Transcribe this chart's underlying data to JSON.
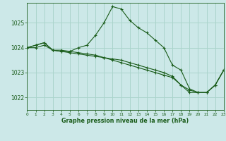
{
  "title": "Graphe pression niveau de la mer (hPa)",
  "background_color": "#cce8e8",
  "grid_color": "#aad4cc",
  "line_color": "#1a5c1a",
  "xlim": [
    0,
    23
  ],
  "ylim": [
    1021.5,
    1025.8
  ],
  "yticks": [
    1022,
    1023,
    1024,
    1025
  ],
  "xticks": [
    0,
    1,
    2,
    3,
    4,
    5,
    6,
    7,
    8,
    9,
    10,
    11,
    12,
    13,
    14,
    15,
    16,
    17,
    18,
    19,
    20,
    21,
    22,
    23
  ],
  "series": [
    [
      1024.0,
      1024.0,
      1024.1,
      1023.9,
      1023.9,
      1023.85,
      1023.8,
      1023.75,
      1023.7,
      1023.6,
      1023.5,
      1023.4,
      1023.3,
      1023.2,
      1023.1,
      1023.0,
      1022.9,
      1022.8,
      1022.5,
      1022.2,
      1022.2,
      1022.2,
      1022.5,
      1023.1
    ],
    [
      1024.0,
      1024.1,
      1024.2,
      1023.9,
      1023.85,
      1023.85,
      1024.0,
      1024.1,
      1024.5,
      1025.0,
      1025.65,
      1025.55,
      1025.1,
      1024.8,
      1024.6,
      1024.3,
      1024.0,
      1023.3,
      1023.1,
      1022.35,
      1022.2,
      1022.2,
      1022.5,
      1023.1
    ],
    [
      1024.0,
      1024.1,
      1024.2,
      1023.9,
      1023.85,
      1023.8,
      1023.75,
      1023.7,
      1023.65,
      1023.6,
      1023.55,
      1023.5,
      1023.4,
      1023.3,
      1023.2,
      1023.1,
      1023.0,
      1022.85,
      1022.5,
      1022.3,
      1022.2,
      1022.2,
      1022.5,
      1023.1
    ]
  ]
}
